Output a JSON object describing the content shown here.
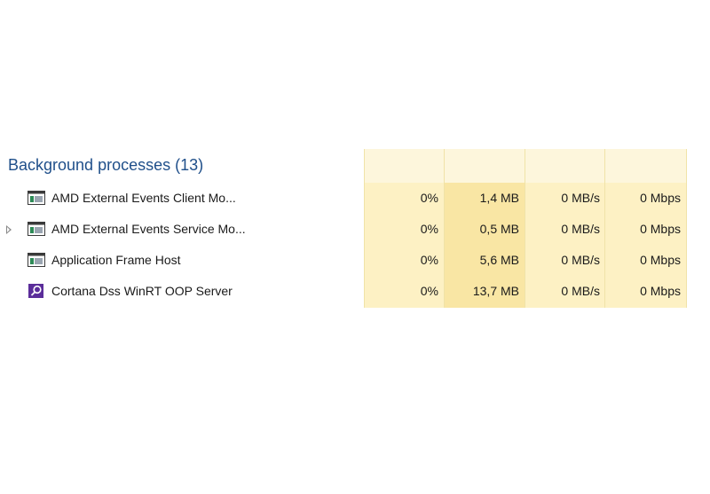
{
  "section": {
    "title": "Background processes (13)"
  },
  "processes": [
    {
      "name": "AMD External Events Client Mo...",
      "icon": "window-app-icon",
      "expandable": false,
      "cpu": "0%",
      "memory": "1,4 MB",
      "disk": "0 MB/s",
      "network": "0 Mbps"
    },
    {
      "name": "AMD External Events Service Mo...",
      "icon": "window-app-icon",
      "expandable": true,
      "cpu": "0%",
      "memory": "0,5 MB",
      "disk": "0 MB/s",
      "network": "0 Mbps"
    },
    {
      "name": "Application Frame Host",
      "icon": "window-app-icon",
      "expandable": false,
      "cpu": "0%",
      "memory": "5,6 MB",
      "disk": "0 MB/s",
      "network": "0 Mbps"
    },
    {
      "name": "Cortana Dss WinRT OOP Server",
      "icon": "cortana-search-icon",
      "expandable": false,
      "cpu": "0%",
      "memory": "13,7 MB",
      "disk": "0 MB/s",
      "network": "0 Mbps"
    }
  ],
  "colors": {
    "section_title": "#1f4f8a",
    "column_header_bg": "#fdf6dc",
    "column_bg": "#fdf1c4",
    "memory_column_bg": "#f9e6a4",
    "cortana_icon_bg": "#5b2d9a"
  }
}
